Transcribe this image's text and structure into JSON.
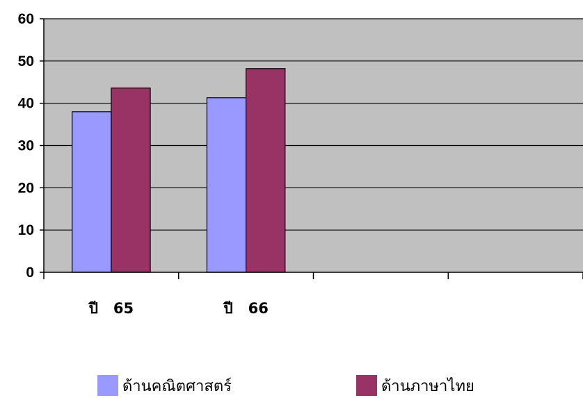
{
  "chart_data": {
    "type": "bar",
    "categories": [
      "ปี 65",
      "ปี 66",
      "",
      ""
    ],
    "series": [
      {
        "name": "ด้านคณิตศาสตร์",
        "values": [
          38,
          41.3,
          null,
          null
        ],
        "color": "#9999FF"
      },
      {
        "name": "ด้านภาษาไทย",
        "values": [
          43.6,
          48.2,
          null,
          null
        ],
        "color": "#993366"
      }
    ],
    "ylim": [
      0,
      60
    ],
    "yticks": [
      0,
      10,
      20,
      30,
      40,
      50,
      60
    ],
    "grid": true,
    "plot_background": "#C0C0C0",
    "legend_position": "bottom",
    "title": "",
    "xlabel": "",
    "ylabel": ""
  }
}
